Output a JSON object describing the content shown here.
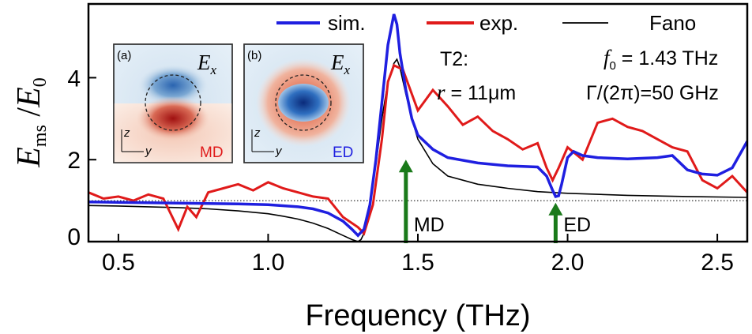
{
  "chart_data": {
    "type": "line",
    "xlabel": "Frequency (THz)",
    "ylabel": {
      "main": "E",
      "sub": "ms",
      "sep": " /",
      "den": "E",
      "den_sub": "0"
    },
    "xlim": [
      0.4,
      2.6
    ],
    "ylim": [
      0,
      5.8
    ],
    "xticks": [
      0.5,
      1.0,
      1.5,
      2.0,
      2.5
    ],
    "xtick_labels": [
      "0.5",
      "1.0",
      "1.5",
      "2.0",
      "2.5"
    ],
    "yticks": [
      0,
      2,
      4
    ],
    "ytick_labels": [
      "0",
      "2",
      "4"
    ],
    "reference_line": {
      "y": 1.0,
      "style": "dotted"
    },
    "series": [
      {
        "name": "sim.",
        "color": "#1f1fe0",
        "x": [
          0.4,
          0.5,
          0.6,
          0.7,
          0.8,
          0.9,
          1.0,
          1.1,
          1.15,
          1.2,
          1.25,
          1.28,
          1.3,
          1.32,
          1.34,
          1.36,
          1.38,
          1.4,
          1.42,
          1.43,
          1.44,
          1.46,
          1.48,
          1.5,
          1.55,
          1.6,
          1.7,
          1.8,
          1.9,
          1.93,
          1.95,
          1.96,
          1.97,
          1.98,
          2.0,
          2.02,
          2.05,
          2.1,
          2.2,
          2.3,
          2.35,
          2.4,
          2.45,
          2.5,
          2.55,
          2.6
        ],
        "values": [
          0.97,
          0.96,
          0.95,
          0.94,
          0.93,
          0.92,
          0.9,
          0.85,
          0.8,
          0.7,
          0.5,
          0.3,
          0.15,
          0.3,
          0.9,
          2.0,
          3.4,
          4.8,
          5.55,
          5.3,
          4.6,
          3.7,
          3.0,
          2.6,
          2.25,
          2.05,
          1.92,
          1.85,
          1.82,
          1.6,
          1.25,
          1.1,
          1.12,
          1.4,
          2.05,
          2.2,
          2.1,
          2.05,
          2.02,
          2.05,
          2.1,
          1.75,
          1.65,
          1.62,
          1.8,
          2.45
        ]
      },
      {
        "name": "exp.",
        "color": "#e01a1a",
        "x": [
          0.4,
          0.45,
          0.5,
          0.55,
          0.6,
          0.65,
          0.7,
          0.73,
          0.76,
          0.8,
          0.85,
          0.9,
          0.95,
          1.0,
          1.05,
          1.1,
          1.15,
          1.2,
          1.25,
          1.3,
          1.32,
          1.35,
          1.38,
          1.4,
          1.42,
          1.45,
          1.48,
          1.5,
          1.55,
          1.6,
          1.65,
          1.7,
          1.75,
          1.8,
          1.85,
          1.9,
          1.93,
          1.95,
          1.97,
          2.0,
          2.05,
          2.1,
          2.15,
          2.2,
          2.25,
          2.3,
          2.35,
          2.4,
          2.45,
          2.5,
          2.55,
          2.6
        ],
        "values": [
          1.2,
          1.05,
          1.1,
          1.0,
          1.15,
          1.05,
          0.3,
          0.85,
          0.6,
          1.2,
          1.3,
          1.4,
          1.25,
          1.45,
          1.3,
          1.2,
          1.1,
          1.05,
          0.6,
          0.35,
          0.2,
          0.9,
          2.5,
          3.9,
          4.3,
          4.2,
          3.6,
          3.2,
          3.7,
          3.3,
          2.85,
          3.05,
          2.7,
          2.5,
          2.25,
          2.4,
          1.8,
          1.5,
          1.8,
          2.3,
          2.0,
          2.9,
          3.0,
          2.8,
          2.7,
          2.5,
          2.3,
          2.2,
          1.5,
          1.3,
          1.6,
          1.2
        ]
      },
      {
        "name": "Fano",
        "color": "#000000",
        "x": [
          0.4,
          0.5,
          0.6,
          0.7,
          0.8,
          0.9,
          1.0,
          1.05,
          1.1,
          1.15,
          1.2,
          1.25,
          1.28,
          1.3,
          1.31,
          1.32,
          1.34,
          1.36,
          1.38,
          1.4,
          1.42,
          1.43,
          1.44,
          1.46,
          1.48,
          1.5,
          1.55,
          1.6,
          1.7,
          1.8,
          1.9,
          2.0,
          2.2,
          2.4,
          2.6
        ],
        "values": [
          0.88,
          0.87,
          0.85,
          0.83,
          0.8,
          0.75,
          0.68,
          0.62,
          0.55,
          0.45,
          0.32,
          0.15,
          0.05,
          0.0,
          0.05,
          0.2,
          0.9,
          1.9,
          3.0,
          3.9,
          4.35,
          4.45,
          4.25,
          3.6,
          3.0,
          2.5,
          1.9,
          1.6,
          1.4,
          1.3,
          1.22,
          1.18,
          1.13,
          1.1,
          1.08
        ]
      }
    ],
    "annotations": [
      {
        "label": "MD",
        "x": 1.46,
        "arrow_from": 0.0,
        "arrow_to": 2.0,
        "color": "#1a7a1a"
      },
      {
        "label": "ED",
        "x": 1.96,
        "arrow_from": 0.0,
        "arrow_to": 0.95,
        "color": "#1a7a1a"
      }
    ],
    "params": {
      "sample": "T2:",
      "r_label": "r",
      "r_value": " = 11",
      "r_unit": "μm",
      "f_label": "f",
      "f_sub": "0",
      "f_value": " = 1.43 THz",
      "gamma": "Γ/(2π)=50 GHz"
    },
    "insets": [
      {
        "panel": "(a)",
        "field": "E",
        "field_sub": "x",
        "mode": "MD",
        "mode_color": "#e01a1a",
        "axis_v": "z",
        "axis_h": "y"
      },
      {
        "panel": "(b)",
        "field": "E",
        "field_sub": "x",
        "mode": "ED",
        "mode_color": "#1f1fe0",
        "axis_v": "z",
        "axis_h": "y"
      }
    ]
  }
}
